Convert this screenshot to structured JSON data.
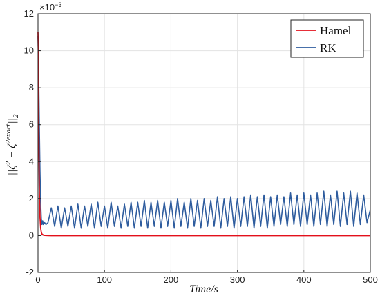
{
  "chart_data": {
    "type": "line",
    "title": "",
    "xlabel": "Time/s",
    "ylabel": "||ζ² − ζ²exact||₂",
    "ylabel_parts": {
      "open": "||ζ",
      "sup1": "2",
      "minus": " − ζ",
      "sup2": "2exact",
      "close": "||",
      "sub": "2"
    },
    "y_exponent_label": "×10⁻³",
    "y_exponent_parts": {
      "base": "×10",
      "exp": "−3"
    },
    "xlim": [
      0,
      500
    ],
    "ylim": [
      -2,
      12
    ],
    "y_scale": 0.001,
    "x_ticks": [
      "0",
      "100",
      "200",
      "300",
      "400",
      "500"
    ],
    "y_ticks": [
      "-2",
      "0",
      "2",
      "4",
      "6",
      "8",
      "10",
      "12"
    ],
    "grid": true,
    "legend_position": "top-right",
    "series": [
      {
        "name": "Hamel",
        "color": "#e3101b",
        "x": [
          0,
          0.5,
          1,
          1.5,
          2,
          3,
          4,
          5,
          6,
          8,
          10,
          15,
          20,
          500
        ],
        "y": [
          0.011,
          0.0098,
          0.0068,
          0.0042,
          0.0024,
          0.001,
          0.0004,
          0.00017,
          8e-05,
          3e-05,
          1e-05,
          2e-06,
          0.0,
          0.0
        ]
      },
      {
        "name": "RK",
        "color": "#2e5c9e",
        "x": [
          0,
          1,
          2,
          3,
          4,
          5,
          6,
          7,
          8,
          10,
          12,
          15,
          20,
          25,
          30,
          35,
          40,
          45,
          50,
          55,
          60,
          65,
          70,
          75,
          80,
          85,
          90,
          95,
          100,
          105,
          110,
          115,
          120,
          125,
          130,
          135,
          140,
          145,
          150,
          155,
          160,
          165,
          170,
          175,
          180,
          185,
          190,
          195,
          200,
          205,
          210,
          215,
          220,
          225,
          230,
          235,
          240,
          245,
          250,
          255,
          260,
          265,
          270,
          275,
          280,
          285,
          290,
          295,
          300,
          305,
          310,
          315,
          320,
          325,
          330,
          335,
          340,
          345,
          350,
          355,
          360,
          365,
          370,
          375,
          380,
          385,
          390,
          395,
          400,
          405,
          410,
          415,
          420,
          425,
          430,
          435,
          440,
          445,
          450,
          455,
          460,
          465,
          470,
          475,
          480,
          485,
          490,
          495,
          500
        ],
        "y": [
          0.0108,
          0.0088,
          0.006,
          0.0035,
          0.0018,
          0.0009,
          0.0006,
          0.0008,
          0.0006,
          0.0007,
          0.0006,
          0.0007,
          0.0015,
          0.0005,
          0.0016,
          0.0004,
          0.0015,
          0.0005,
          0.0016,
          0.0004,
          0.0017,
          0.0004,
          0.0016,
          0.0005,
          0.0017,
          0.0004,
          0.0018,
          0.0005,
          0.0016,
          0.0004,
          0.0018,
          0.0005,
          0.0016,
          0.0004,
          0.0017,
          0.0005,
          0.0018,
          0.0004,
          0.0018,
          0.0005,
          0.0019,
          0.0004,
          0.0018,
          0.0005,
          0.0019,
          0.0004,
          0.0018,
          0.0005,
          0.0019,
          0.0004,
          0.002,
          0.0005,
          0.0018,
          0.0004,
          0.002,
          0.0005,
          0.0019,
          0.0004,
          0.002,
          0.0005,
          0.0019,
          0.0005,
          0.0021,
          0.0004,
          0.002,
          0.0005,
          0.0021,
          0.0004,
          0.002,
          0.0005,
          0.0021,
          0.0005,
          0.0022,
          0.0004,
          0.0021,
          0.0005,
          0.0022,
          0.0004,
          0.0021,
          0.0005,
          0.0022,
          0.0006,
          0.0021,
          0.0005,
          0.0023,
          0.0006,
          0.0022,
          0.0005,
          0.0023,
          0.0006,
          0.0022,
          0.0005,
          0.0023,
          0.0006,
          0.0024,
          0.0005,
          0.0022,
          0.0006,
          0.0024,
          0.0005,
          0.0023,
          0.0006,
          0.0024,
          0.0005,
          0.0023,
          0.0006,
          0.0022,
          0.0007,
          0.0014
        ]
      }
    ]
  }
}
